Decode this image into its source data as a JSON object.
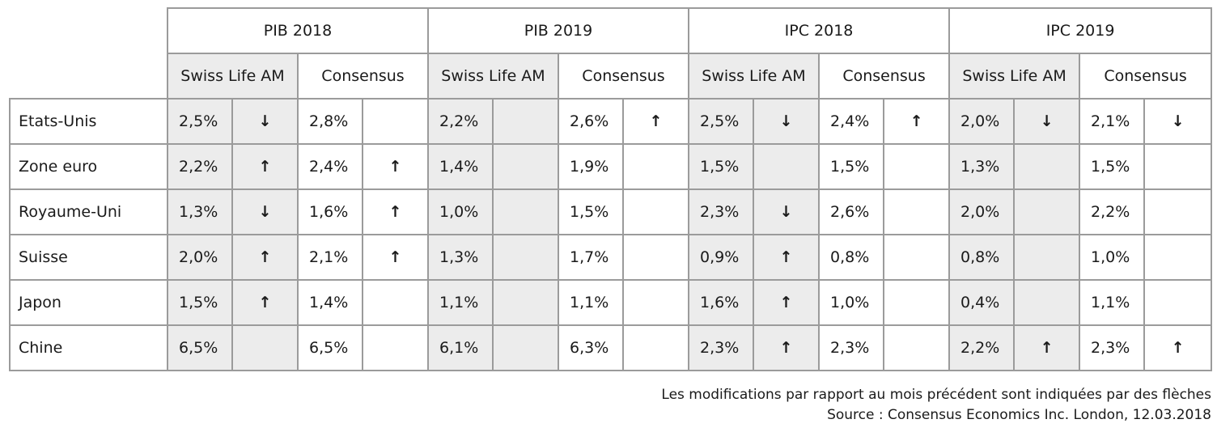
{
  "groups": [
    "PIB 2018",
    "PIB 2019",
    "IPC 2018",
    "IPC 2019"
  ],
  "subheaders": [
    "Swiss Life AM",
    "Consensus"
  ],
  "rows": [
    {
      "country": "Etats-Unis",
      "cells": [
        [
          "2,5%",
          "↓"
        ],
        [
          "2,8%",
          ""
        ],
        [
          "2,2%",
          ""
        ],
        [
          "2,6%",
          "↑"
        ],
        [
          "2,5%",
          "↓"
        ],
        [
          "2,4%",
          "↑"
        ],
        [
          "2,0%",
          "↓"
        ],
        [
          "2,1%",
          "↓"
        ]
      ]
    },
    {
      "country": "Zone euro",
      "cells": [
        [
          "2,2%",
          "↑"
        ],
        [
          "2,4%",
          "↑"
        ],
        [
          "1,4%",
          ""
        ],
        [
          "1,9%",
          ""
        ],
        [
          "1,5%",
          ""
        ],
        [
          "1,5%",
          ""
        ],
        [
          "1,3%",
          ""
        ],
        [
          "1,5%",
          ""
        ]
      ]
    },
    {
      "country": "Royaume-Uni",
      "cells": [
        [
          "1,3%",
          "↓"
        ],
        [
          "1,6%",
          "↑"
        ],
        [
          "1,0%",
          ""
        ],
        [
          "1,5%",
          ""
        ],
        [
          "2,3%",
          "↓"
        ],
        [
          "2,6%",
          ""
        ],
        [
          "2,0%",
          ""
        ],
        [
          "2,2%",
          ""
        ]
      ]
    },
    {
      "country": "Suisse",
      "cells": [
        [
          "2,0%",
          "↑"
        ],
        [
          "2,1%",
          "↑"
        ],
        [
          "1,3%",
          ""
        ],
        [
          "1,7%",
          ""
        ],
        [
          "0,9%",
          "↑"
        ],
        [
          "0,8%",
          ""
        ],
        [
          "0,8%",
          ""
        ],
        [
          "1,0%",
          ""
        ]
      ]
    },
    {
      "country": "Japon",
      "cells": [
        [
          "1,5%",
          "↑"
        ],
        [
          "1,4%",
          ""
        ],
        [
          "1,1%",
          ""
        ],
        [
          "1,1%",
          ""
        ],
        [
          "1,6%",
          "↑"
        ],
        [
          "1,0%",
          ""
        ],
        [
          "0,4%",
          ""
        ],
        [
          "1,1%",
          ""
        ]
      ]
    },
    {
      "country": "Chine",
      "cells": [
        [
          "6,5%",
          ""
        ],
        [
          "6,5%",
          ""
        ],
        [
          "6,1%",
          ""
        ],
        [
          "6,3%",
          ""
        ],
        [
          "2,3%",
          "↑"
        ],
        [
          "2,3%",
          ""
        ],
        [
          "2,2%",
          "↑"
        ],
        [
          "2,3%",
          "↑"
        ]
      ]
    }
  ],
  "notes": {
    "changes": "Les modifications par rapport au mois précédent sont indiquées par des flèches",
    "source": "Source : Consensus Economics Inc. London, 12.03.2018"
  },
  "colors": {
    "shade": "#ececec",
    "border": "#9b9b9b"
  }
}
